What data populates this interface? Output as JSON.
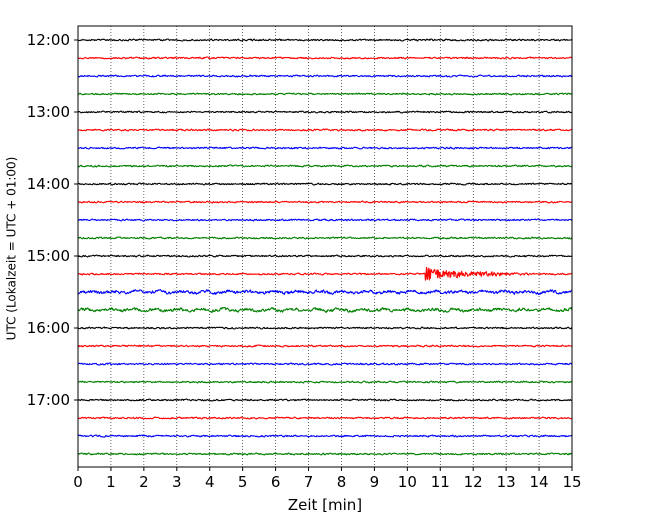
{
  "chart_data": {
    "type": "line",
    "title": "",
    "xlabel": "Zeit  [min]",
    "ylabel": "UTC (Lokalzeit = UTC + 01:00)",
    "xlim": [
      0,
      15
    ],
    "x_ticks": [
      "0",
      "1",
      "2",
      "3",
      "4",
      "5",
      "6",
      "7",
      "8",
      "9",
      "10",
      "11",
      "12",
      "13",
      "14",
      "15"
    ],
    "y_ticks": [
      "12:00",
      "13:00",
      "14:00",
      "15:00",
      "16:00",
      "17:00"
    ],
    "grid": "vertical dotted lines at each minute",
    "trace_interval_minutes": 15,
    "trace_color_cycle": [
      "#000000",
      "#ff0000",
      "#0000ff",
      "#008000"
    ],
    "traces": [
      {
        "start": "12:00",
        "color": "#000000",
        "activity": "low"
      },
      {
        "start": "12:15",
        "color": "#ff0000",
        "activity": "low"
      },
      {
        "start": "12:30",
        "color": "#0000ff",
        "activity": "low"
      },
      {
        "start": "12:45",
        "color": "#008000",
        "activity": "low"
      },
      {
        "start": "13:00",
        "color": "#000000",
        "activity": "low"
      },
      {
        "start": "13:15",
        "color": "#ff0000",
        "activity": "low"
      },
      {
        "start": "13:30",
        "color": "#0000ff",
        "activity": "low"
      },
      {
        "start": "13:45",
        "color": "#008000",
        "activity": "low"
      },
      {
        "start": "14:00",
        "color": "#000000",
        "activity": "low"
      },
      {
        "start": "14:15",
        "color": "#ff0000",
        "activity": "low"
      },
      {
        "start": "14:30",
        "color": "#0000ff",
        "activity": "low"
      },
      {
        "start": "14:45",
        "color": "#008000",
        "activity": "low"
      },
      {
        "start": "15:00",
        "color": "#000000",
        "activity": "low"
      },
      {
        "start": "15:15",
        "color": "#ff0000",
        "activity": "event",
        "event_start_min": 10.55
      },
      {
        "start": "15:30",
        "color": "#0000ff",
        "activity": "moderate"
      },
      {
        "start": "15:45",
        "color": "#008000",
        "activity": "moderate"
      },
      {
        "start": "16:00",
        "color": "#000000",
        "activity": "low"
      },
      {
        "start": "16:15",
        "color": "#ff0000",
        "activity": "low"
      },
      {
        "start": "16:30",
        "color": "#0000ff",
        "activity": "low"
      },
      {
        "start": "16:45",
        "color": "#008000",
        "activity": "low"
      },
      {
        "start": "17:00",
        "color": "#000000",
        "activity": "low"
      },
      {
        "start": "17:15",
        "color": "#ff0000",
        "activity": "low"
      },
      {
        "start": "17:30",
        "color": "#0000ff",
        "activity": "low"
      },
      {
        "start": "17:45",
        "color": "#008000",
        "activity": "low"
      }
    ]
  }
}
